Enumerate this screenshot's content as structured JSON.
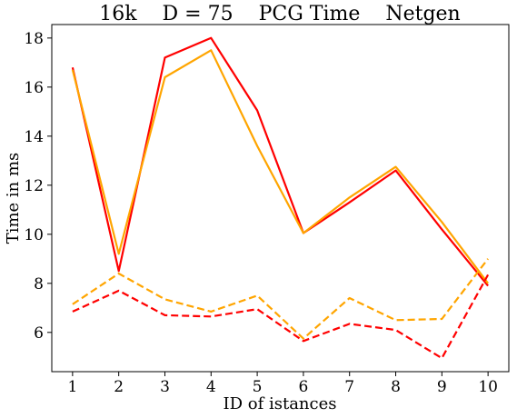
{
  "chart_data": {
    "type": "line",
    "title": "16k    D = 75    PCG Time    Netgen",
    "xlabel": "ID of istances",
    "ylabel": "Time in ms",
    "categories": [
      1,
      2,
      3,
      4,
      5,
      6,
      7,
      8,
      9,
      10
    ],
    "x_ticks": [
      "1",
      "2",
      "3",
      "4",
      "5",
      "6",
      "7",
      "8",
      "9",
      "10"
    ],
    "y_ticks": [
      "6",
      "8",
      "10",
      "12",
      "14",
      "16",
      "18"
    ],
    "xlim": [
      0.55,
      10.45
    ],
    "ylim": [
      4.4,
      18.55
    ],
    "grid": false,
    "series": [
      {
        "color": "#ff0000",
        "style": "solid",
        "values": [
          16.8,
          8.5,
          17.2,
          18.0,
          15.05,
          10.05,
          11.3,
          12.6,
          10.2,
          7.9
        ]
      },
      {
        "color": "#ffa500",
        "style": "solid",
        "values": [
          16.7,
          9.2,
          16.4,
          17.5,
          13.6,
          10.05,
          11.5,
          12.75,
          10.5,
          8.0
        ]
      },
      {
        "color": "#ffa500",
        "style": "dashed",
        "values": [
          7.15,
          8.4,
          7.35,
          6.85,
          7.5,
          5.75,
          7.4,
          6.5,
          6.55,
          9.0
        ]
      },
      {
        "color": "#ff0000",
        "style": "dashed",
        "values": [
          6.85,
          7.7,
          6.7,
          6.65,
          6.95,
          5.65,
          6.35,
          6.1,
          4.95,
          8.35
        ]
      }
    ]
  }
}
